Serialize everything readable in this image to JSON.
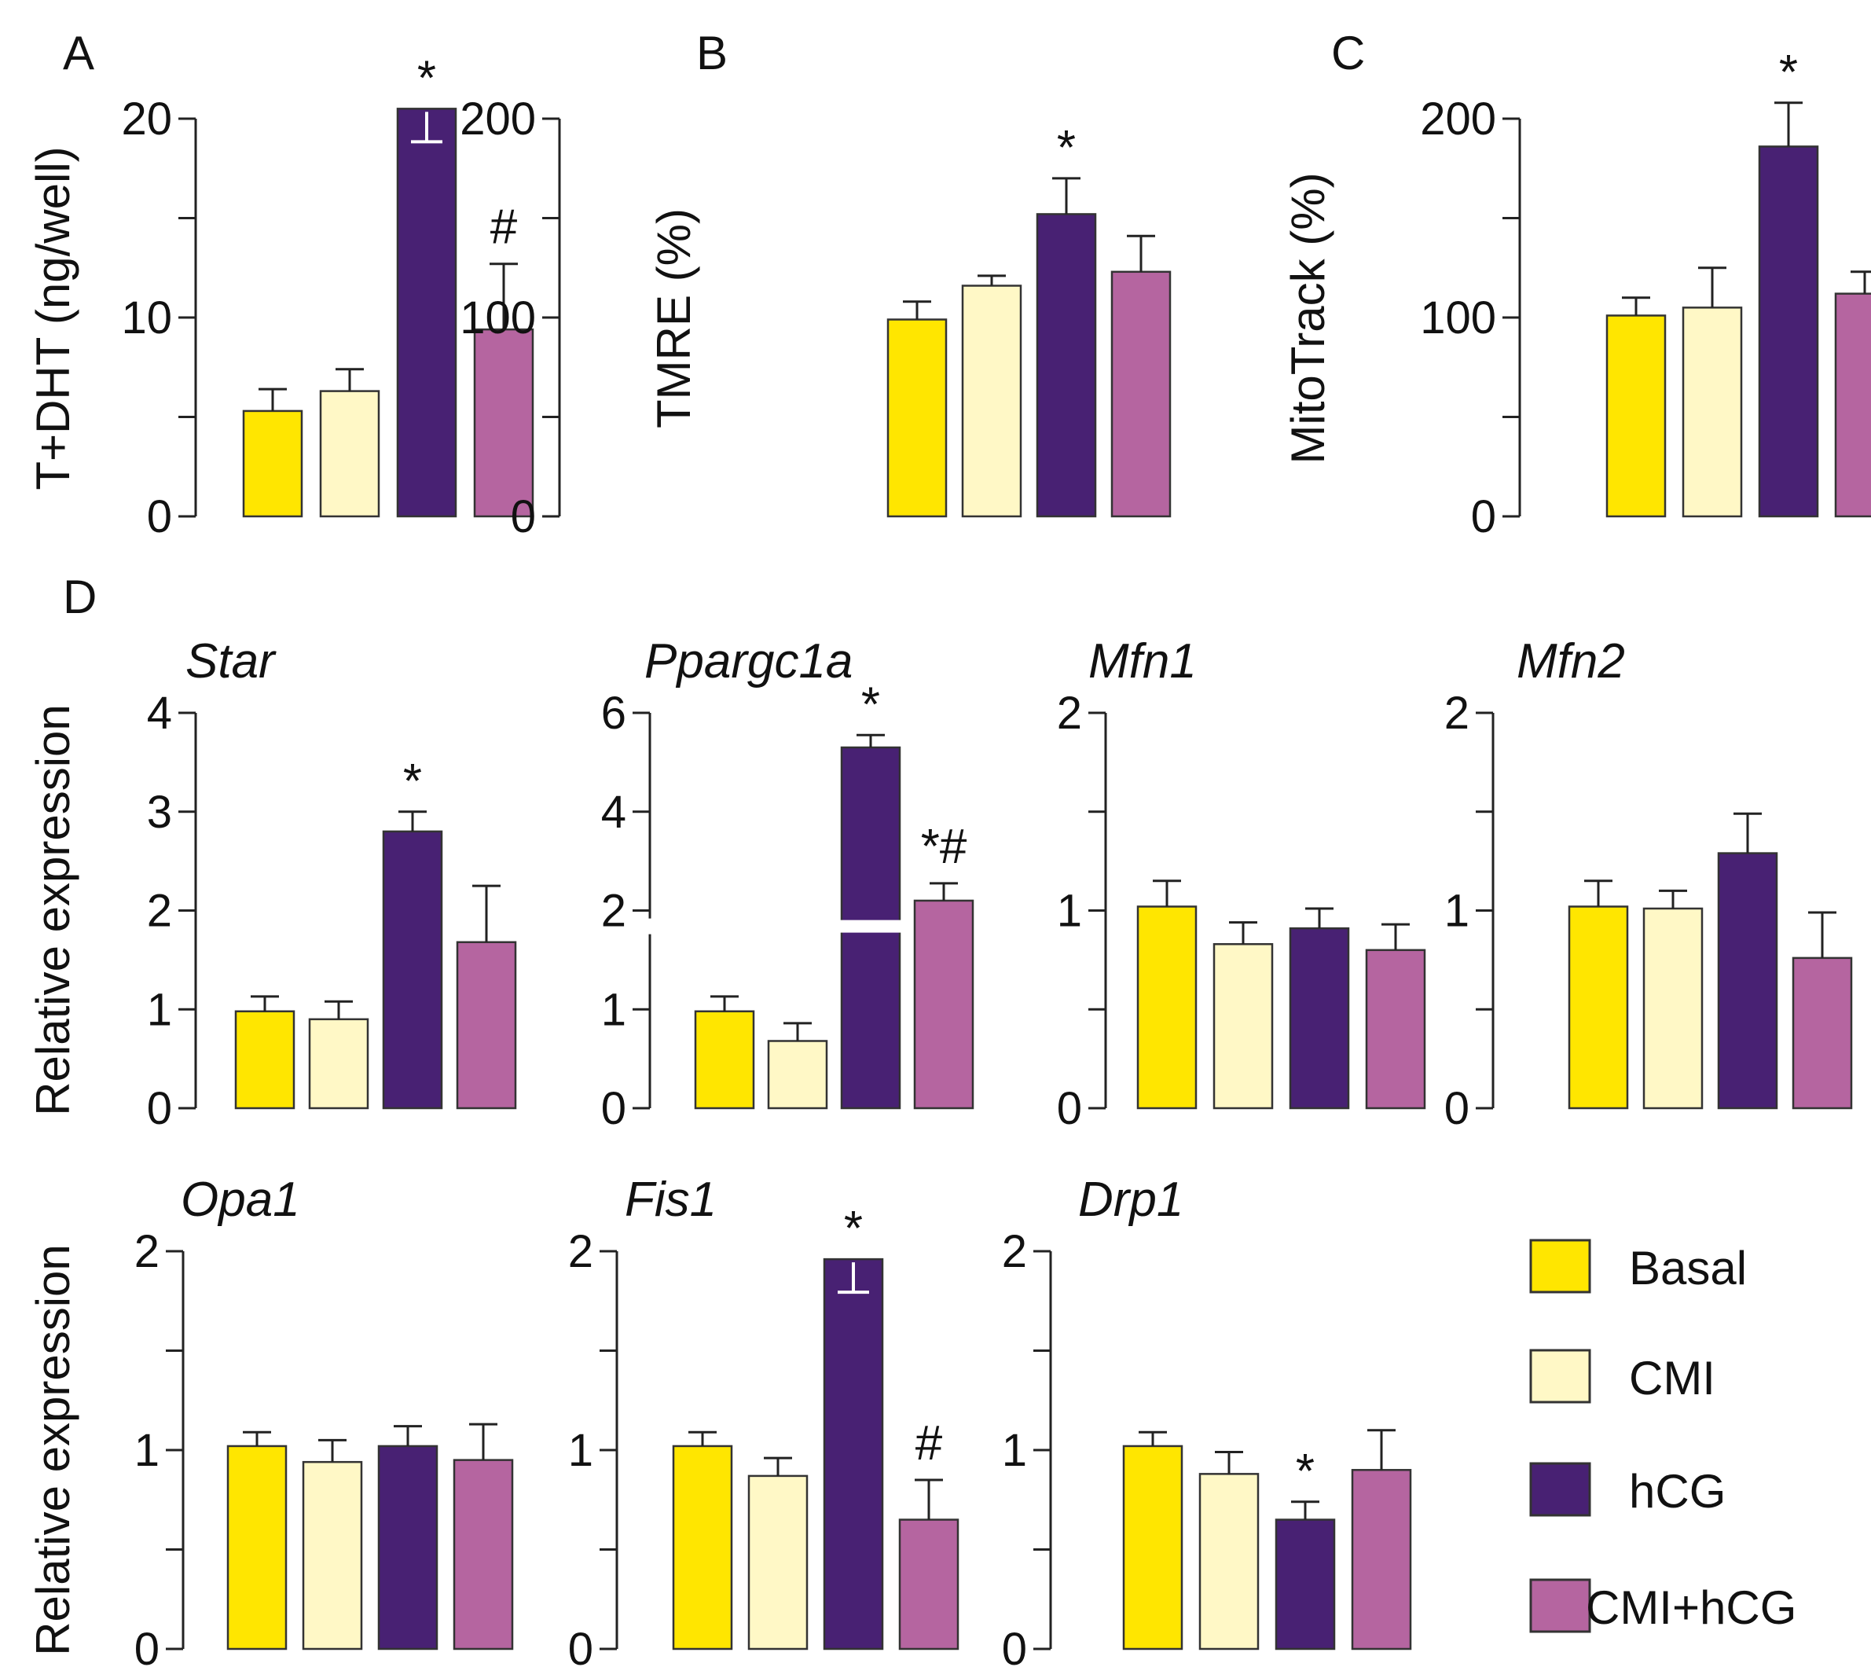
{
  "legend": {
    "items": [
      {
        "label": "Basal",
        "color": "#FFE600"
      },
      {
        "label": "CMI",
        "color": "#FFF8C6"
      },
      {
        "label": "hCG",
        "color": "#482173"
      },
      {
        "label": "CMI+hCG",
        "color": "#B565A0"
      }
    ]
  },
  "chart_data": [
    {
      "id": "A",
      "type": "bar",
      "panel_letter": "A",
      "title": "",
      "ylabel": "T+DHT (ng/well)",
      "categories": [
        "Basal",
        "CMI",
        "hCG",
        "CMI+hCG"
      ],
      "values": [
        5.3,
        6.3,
        20.5,
        9.4
      ],
      "errors": [
        1.1,
        1.1,
        0,
        3.3
      ],
      "ylim": [
        0,
        20
      ],
      "yticks": [
        0,
        10,
        20
      ],
      "minor_yticks": [
        5,
        15
      ],
      "annotations": [
        "",
        "",
        "*",
        "#"
      ],
      "clipped": [
        false,
        false,
        true,
        false
      ]
    },
    {
      "id": "B",
      "type": "bar",
      "panel_letter": "B",
      "title": "",
      "ylabel": "TMRE (%)",
      "categories": [
        "Basal",
        "CMI",
        "hCG",
        "CMI+hCG"
      ],
      "values": [
        99,
        116,
        152,
        123
      ],
      "errors": [
        9,
        5,
        18,
        18
      ],
      "ylim": [
        0,
        200
      ],
      "yticks": [
        0,
        100,
        200
      ],
      "minor_yticks": [
        50,
        150
      ],
      "annotations": [
        "",
        "",
        "*",
        ""
      ],
      "clipped": [
        false,
        false,
        false,
        false
      ]
    },
    {
      "id": "C",
      "type": "bar",
      "panel_letter": "C",
      "title": "",
      "ylabel": "MitoTrack (%)",
      "categories": [
        "Basal",
        "CMI",
        "hCG",
        "CMI+hCG"
      ],
      "values": [
        101,
        105,
        186,
        112
      ],
      "errors": [
        9,
        20,
        22,
        11
      ],
      "ylim": [
        0,
        200
      ],
      "yticks": [
        0,
        100,
        200
      ],
      "minor_yticks": [
        50,
        150
      ],
      "annotations": [
        "",
        "",
        "*",
        ""
      ],
      "clipped": [
        false,
        false,
        false,
        false
      ]
    },
    {
      "id": "Star",
      "type": "bar",
      "panel_letter": "D",
      "title": "Star",
      "ylabel": "Relative expression",
      "categories": [
        "Basal",
        "CMI",
        "hCG",
        "CMI+hCG"
      ],
      "values": [
        0.98,
        0.9,
        2.8,
        1.68
      ],
      "errors": [
        0.15,
        0.18,
        0.2,
        0.57
      ],
      "ylim": [
        0,
        4
      ],
      "yticks": [
        0,
        1,
        2,
        3,
        4
      ],
      "minor_yticks": [],
      "annotations": [
        "",
        "",
        "*",
        ""
      ],
      "clipped": [
        false,
        false,
        false,
        false
      ]
    },
    {
      "id": "Ppargc1a",
      "type": "bar",
      "panel_letter": "",
      "title": "Ppargc1a",
      "ylabel": "",
      "categories": [
        "Basal",
        "CMI",
        "hCG",
        "CMI+hCG"
      ],
      "values": [
        0.98,
        0.68,
        5.3,
        2.2
      ],
      "errors": [
        0.15,
        0.18,
        0.25,
        0.35
      ],
      "ylim": [
        0,
        6
      ],
      "ytick_labels": [
        "0",
        "1",
        "2",
        "4",
        "6"
      ],
      "annotations": [
        "",
        "",
        "*",
        "*#"
      ],
      "clipped": [
        false,
        false,
        false,
        false
      ]
    },
    {
      "id": "Mfn1",
      "type": "bar",
      "panel_letter": "",
      "title": "Mfn1",
      "ylabel": "",
      "categories": [
        "Basal",
        "CMI",
        "hCG",
        "CMI+hCG"
      ],
      "values": [
        1.02,
        0.83,
        0.91,
        0.8
      ],
      "errors": [
        0.13,
        0.11,
        0.1,
        0.13
      ],
      "ylim": [
        0,
        2
      ],
      "yticks": [
        0,
        1,
        2
      ],
      "minor_yticks": [
        0.5,
        1.5
      ],
      "annotations": [
        "",
        "",
        "",
        ""
      ],
      "clipped": [
        false,
        false,
        false,
        false
      ]
    },
    {
      "id": "Mfn2",
      "type": "bar",
      "panel_letter": "",
      "title": "Mfn2",
      "ylabel": "",
      "categories": [
        "Basal",
        "CMI",
        "hCG",
        "CMI+hCG"
      ],
      "values": [
        1.02,
        1.01,
        1.29,
        0.76
      ],
      "errors": [
        0.13,
        0.09,
        0.2,
        0.23
      ],
      "ylim": [
        0,
        2
      ],
      "yticks": [
        0,
        1,
        2
      ],
      "minor_yticks": [
        0.5,
        1.5
      ],
      "annotations": [
        "",
        "",
        "",
        ""
      ],
      "clipped": [
        false,
        false,
        false,
        false
      ]
    },
    {
      "id": "Opa1",
      "type": "bar",
      "panel_letter": "",
      "title": "Opa1",
      "ylabel": "Relative expression",
      "categories": [
        "Basal",
        "CMI",
        "hCG",
        "CMI+hCG"
      ],
      "values": [
        1.02,
        0.94,
        1.02,
        0.95
      ],
      "errors": [
        0.07,
        0.11,
        0.1,
        0.18
      ],
      "ylim": [
        0,
        2
      ],
      "yticks": [
        0,
        1,
        2
      ],
      "minor_yticks": [
        0.5,
        1.5
      ],
      "annotations": [
        "",
        "",
        "",
        ""
      ],
      "clipped": [
        false,
        false,
        false,
        false
      ]
    },
    {
      "id": "Fis1",
      "type": "bar",
      "panel_letter": "",
      "title": "Fis1",
      "ylabel": "",
      "categories": [
        "Basal",
        "CMI",
        "hCG",
        "CMI+hCG"
      ],
      "values": [
        1.02,
        0.87,
        1.96,
        0.65
      ],
      "errors": [
        0.07,
        0.09,
        0,
        0.2
      ],
      "ylim": [
        0,
        2
      ],
      "yticks": [
        0,
        1,
        2
      ],
      "minor_yticks": [
        0.5,
        1.5
      ],
      "annotations": [
        "",
        "",
        "*",
        "#"
      ],
      "clipped": [
        false,
        false,
        true,
        false
      ]
    },
    {
      "id": "Drp1",
      "type": "bar",
      "panel_letter": "",
      "title": "Drp1",
      "ylabel": "",
      "categories": [
        "Basal",
        "CMI",
        "hCG",
        "CMI+hCG"
      ],
      "values": [
        1.02,
        0.88,
        0.65,
        0.9
      ],
      "errors": [
        0.07,
        0.11,
        0.09,
        0.2
      ],
      "ylim": [
        0,
        2
      ],
      "yticks": [
        0,
        1,
        2
      ],
      "minor_yticks": [
        0.5,
        1.5
      ],
      "annotations": [
        "",
        "",
        "*",
        ""
      ],
      "clipped": [
        false,
        false,
        false,
        false
      ]
    }
  ]
}
